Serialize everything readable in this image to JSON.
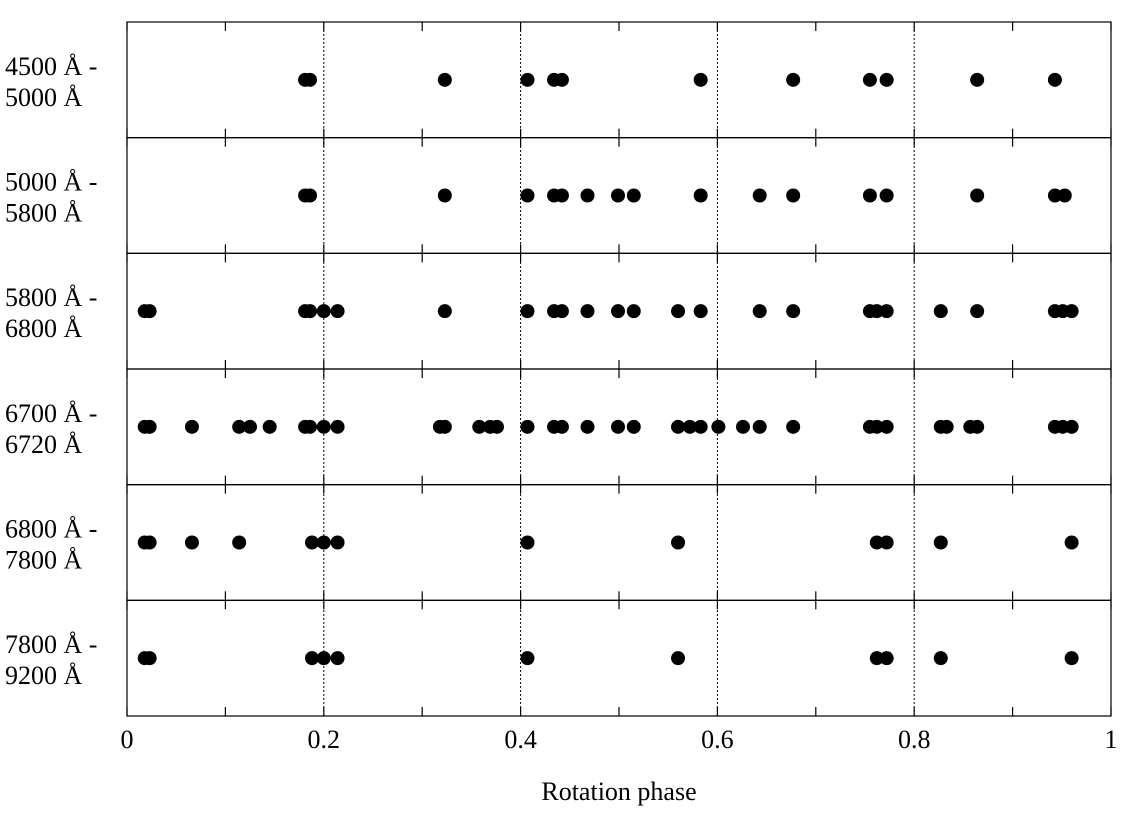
{
  "chart_data": {
    "type": "scatter",
    "xlabel": "Rotation phase",
    "xlim": [
      0,
      1
    ],
    "xticks": [
      0,
      0.2,
      0.4,
      0.6,
      0.8,
      1
    ],
    "xminor_ticks": [
      0.1,
      0.3,
      0.5,
      0.7,
      0.9
    ],
    "grid": true,
    "color": "#000000",
    "panels": [
      {
        "label": [
          "4500 Å -",
          "5000 Å"
        ],
        "x": [
          0.181,
          0.186,
          0.323,
          0.407,
          0.434,
          0.442,
          0.583,
          0.677,
          0.755,
          0.772,
          0.864,
          0.943
        ]
      },
      {
        "label": [
          "5000 Å -",
          "5800 Å"
        ],
        "x": [
          0.181,
          0.186,
          0.323,
          0.407,
          0.434,
          0.442,
          0.468,
          0.499,
          0.515,
          0.583,
          0.643,
          0.677,
          0.755,
          0.772,
          0.864,
          0.943,
          0.953
        ]
      },
      {
        "label": [
          "5800 Å -",
          "6800 Å"
        ],
        "x": [
          0.018,
          0.023,
          0.181,
          0.186,
          0.2,
          0.214,
          0.323,
          0.407,
          0.434,
          0.442,
          0.468,
          0.499,
          0.515,
          0.56,
          0.583,
          0.643,
          0.677,
          0.755,
          0.762,
          0.772,
          0.827,
          0.864,
          0.943,
          0.951,
          0.96
        ]
      },
      {
        "label": [
          "6700 Å -",
          "6720 Å"
        ],
        "x": [
          0.018,
          0.023,
          0.066,
          0.114,
          0.125,
          0.145,
          0.181,
          0.186,
          0.2,
          0.214,
          0.318,
          0.323,
          0.358,
          0.369,
          0.376,
          0.407,
          0.434,
          0.442,
          0.468,
          0.499,
          0.515,
          0.56,
          0.572,
          0.583,
          0.601,
          0.626,
          0.643,
          0.677,
          0.755,
          0.762,
          0.772,
          0.827,
          0.833,
          0.857,
          0.864,
          0.943,
          0.951,
          0.96
        ]
      },
      {
        "label": [
          "6800 Å -",
          "7800 Å"
        ],
        "x": [
          0.018,
          0.023,
          0.066,
          0.114,
          0.188,
          0.2,
          0.214,
          0.407,
          0.56,
          0.762,
          0.772,
          0.827,
          0.96
        ]
      },
      {
        "label": [
          "7800 Å -",
          "9200 Å"
        ],
        "x": [
          0.018,
          0.023,
          0.188,
          0.2,
          0.214,
          0.407,
          0.56,
          0.762,
          0.772,
          0.827,
          0.96
        ]
      }
    ]
  }
}
